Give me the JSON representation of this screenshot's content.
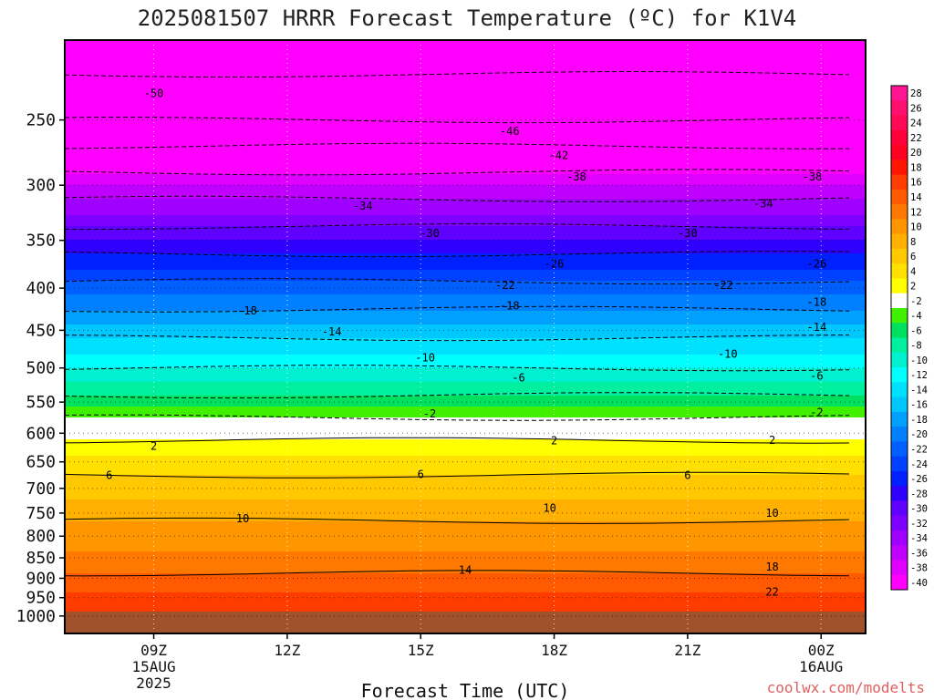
{
  "chart_data": {
    "type": "contour",
    "title": "2025081507 HRRR Forecast Temperature (ºC) for K1V4",
    "xlabel": "Forecast Time (UTC)",
    "ylabel": "",
    "credit": "coolwx.com/modelts",
    "x_ticks": [
      {
        "label": "09Z",
        "sub": [
          "15AUG",
          "2025"
        ],
        "hour": 9
      },
      {
        "label": "12Z",
        "sub": [],
        "hour": 12
      },
      {
        "label": "15Z",
        "sub": [],
        "hour": 15
      },
      {
        "label": "18Z",
        "sub": [],
        "hour": 18
      },
      {
        "label": "21Z",
        "sub": [],
        "hour": 21
      },
      {
        "label": "00Z",
        "sub": [
          "16AUG"
        ],
        "hour": 24
      }
    ],
    "x_range_hours": [
      7.0,
      25.0
    ],
    "y_axis": {
      "unit": "hPa",
      "log": true,
      "range": [
        200,
        1050
      ],
      "ticks": [
        250,
        300,
        350,
        400,
        450,
        500,
        550,
        600,
        650,
        700,
        750,
        800,
        850,
        900,
        950,
        1000
      ],
      "surface_pressure": 990
    },
    "temperature_profile": [
      {
        "p": 200,
        "t": -53
      },
      {
        "p": 250,
        "t": -46
      },
      {
        "p": 300,
        "t": -36
      },
      {
        "p": 350,
        "t": -28
      },
      {
        "p": 400,
        "t": -21
      },
      {
        "p": 450,
        "t": -15
      },
      {
        "p": 500,
        "t": -10
      },
      {
        "p": 550,
        "t": -5
      },
      {
        "p": 600,
        "t": 1
      },
      {
        "p": 650,
        "t": 5
      },
      {
        "p": 700,
        "t": 7
      },
      {
        "p": 750,
        "t": 9.5
      },
      {
        "p": 800,
        "t": 11
      },
      {
        "p": 850,
        "t": 12.5
      },
      {
        "p": 900,
        "t": 14.5
      },
      {
        "p": 950,
        "t": 16.5
      },
      {
        "p": 1000,
        "t": 18
      }
    ],
    "colorbar": {
      "labels": [
        "28",
        "26",
        "24",
        "22",
        "20",
        "18",
        "16",
        "14",
        "12",
        "10",
        "8",
        "6",
        "4",
        "2",
        "-2",
        "-4",
        "-6",
        "-8",
        "-10",
        "-12",
        "-14",
        "-16",
        "-18",
        "-20",
        "-22",
        "-24",
        "-26",
        "-28",
        "-30",
        "-32",
        "-34",
        "-36",
        "-38",
        "-40"
      ],
      "colors": [
        "#ff1493",
        "#ff1070",
        "#ff0a55",
        "#ff0038",
        "#ff0020",
        "#ff1500",
        "#ff3c00",
        "#ff5a00",
        "#ff7800",
        "#ff9600",
        "#ffb000",
        "#ffc800",
        "#ffe000",
        "#ffff00",
        "#ffffff",
        "#40f000",
        "#00e060",
        "#00f0a0",
        "#00f0d0",
        "#00ffff",
        "#00e0ff",
        "#00c8ff",
        "#00a0ff",
        "#0080ff",
        "#0060ff",
        "#0040ff",
        "#0020ff",
        "#3000ff",
        "#6000ff",
        "#8000ff",
        "#a000ff",
        "#c000ff",
        "#e000ff",
        "#ff00ff"
      ]
    },
    "contour_labels": [
      {
        "text": "-50",
        "hour": 9.0,
        "p": 232
      },
      {
        "text": "-46",
        "hour": 17.0,
        "p": 258
      },
      {
        "text": "-42",
        "hour": 18.1,
        "p": 276
      },
      {
        "text": "-38",
        "hour": 18.5,
        "p": 293
      },
      {
        "text": "-38",
        "hour": 23.8,
        "p": 293
      },
      {
        "text": "-34",
        "hour": 13.7,
        "p": 318
      },
      {
        "text": "-34",
        "hour": 22.7,
        "p": 316
      },
      {
        "text": "-30",
        "hour": 15.2,
        "p": 343
      },
      {
        "text": "-30",
        "hour": 21.0,
        "p": 343
      },
      {
        "text": "-26",
        "hour": 18.0,
        "p": 374
      },
      {
        "text": "-26",
        "hour": 23.9,
        "p": 374
      },
      {
        "text": "-22",
        "hour": 16.9,
        "p": 397
      },
      {
        "text": "-22",
        "hour": 21.8,
        "p": 397
      },
      {
        "text": "-18",
        "hour": 11.1,
        "p": 426
      },
      {
        "text": "-18",
        "hour": 17.0,
        "p": 420
      },
      {
        "text": "-18",
        "hour": 23.9,
        "p": 416
      },
      {
        "text": "-14",
        "hour": 13.0,
        "p": 452
      },
      {
        "text": "-14",
        "hour": 23.9,
        "p": 446
      },
      {
        "text": "-10",
        "hour": 15.1,
        "p": 486
      },
      {
        "text": "-10",
        "hour": 21.9,
        "p": 481
      },
      {
        "text": "-6",
        "hour": 17.2,
        "p": 514
      },
      {
        "text": "-6",
        "hour": 23.9,
        "p": 511
      },
      {
        "text": "-2",
        "hour": 15.2,
        "p": 568
      },
      {
        "text": "-2",
        "hour": 23.9,
        "p": 566
      },
      {
        "text": "2",
        "hour": 9.0,
        "p": 622
      },
      {
        "text": "2",
        "hour": 18.0,
        "p": 613
      },
      {
        "text": "2",
        "hour": 22.9,
        "p": 612
      },
      {
        "text": "6",
        "hour": 8.0,
        "p": 675
      },
      {
        "text": "6",
        "hour": 15.0,
        "p": 673
      },
      {
        "text": "6",
        "hour": 21.0,
        "p": 675
      },
      {
        "text": "10",
        "hour": 11.0,
        "p": 762
      },
      {
        "text": "10",
        "hour": 17.9,
        "p": 740
      },
      {
        "text": "10",
        "hour": 22.9,
        "p": 750
      },
      {
        "text": "14",
        "hour": 16.0,
        "p": 880
      },
      {
        "text": "18",
        "hour": 22.9,
        "p": 872
      },
      {
        "text": "22",
        "hour": 22.9,
        "p": 935
      }
    ]
  }
}
